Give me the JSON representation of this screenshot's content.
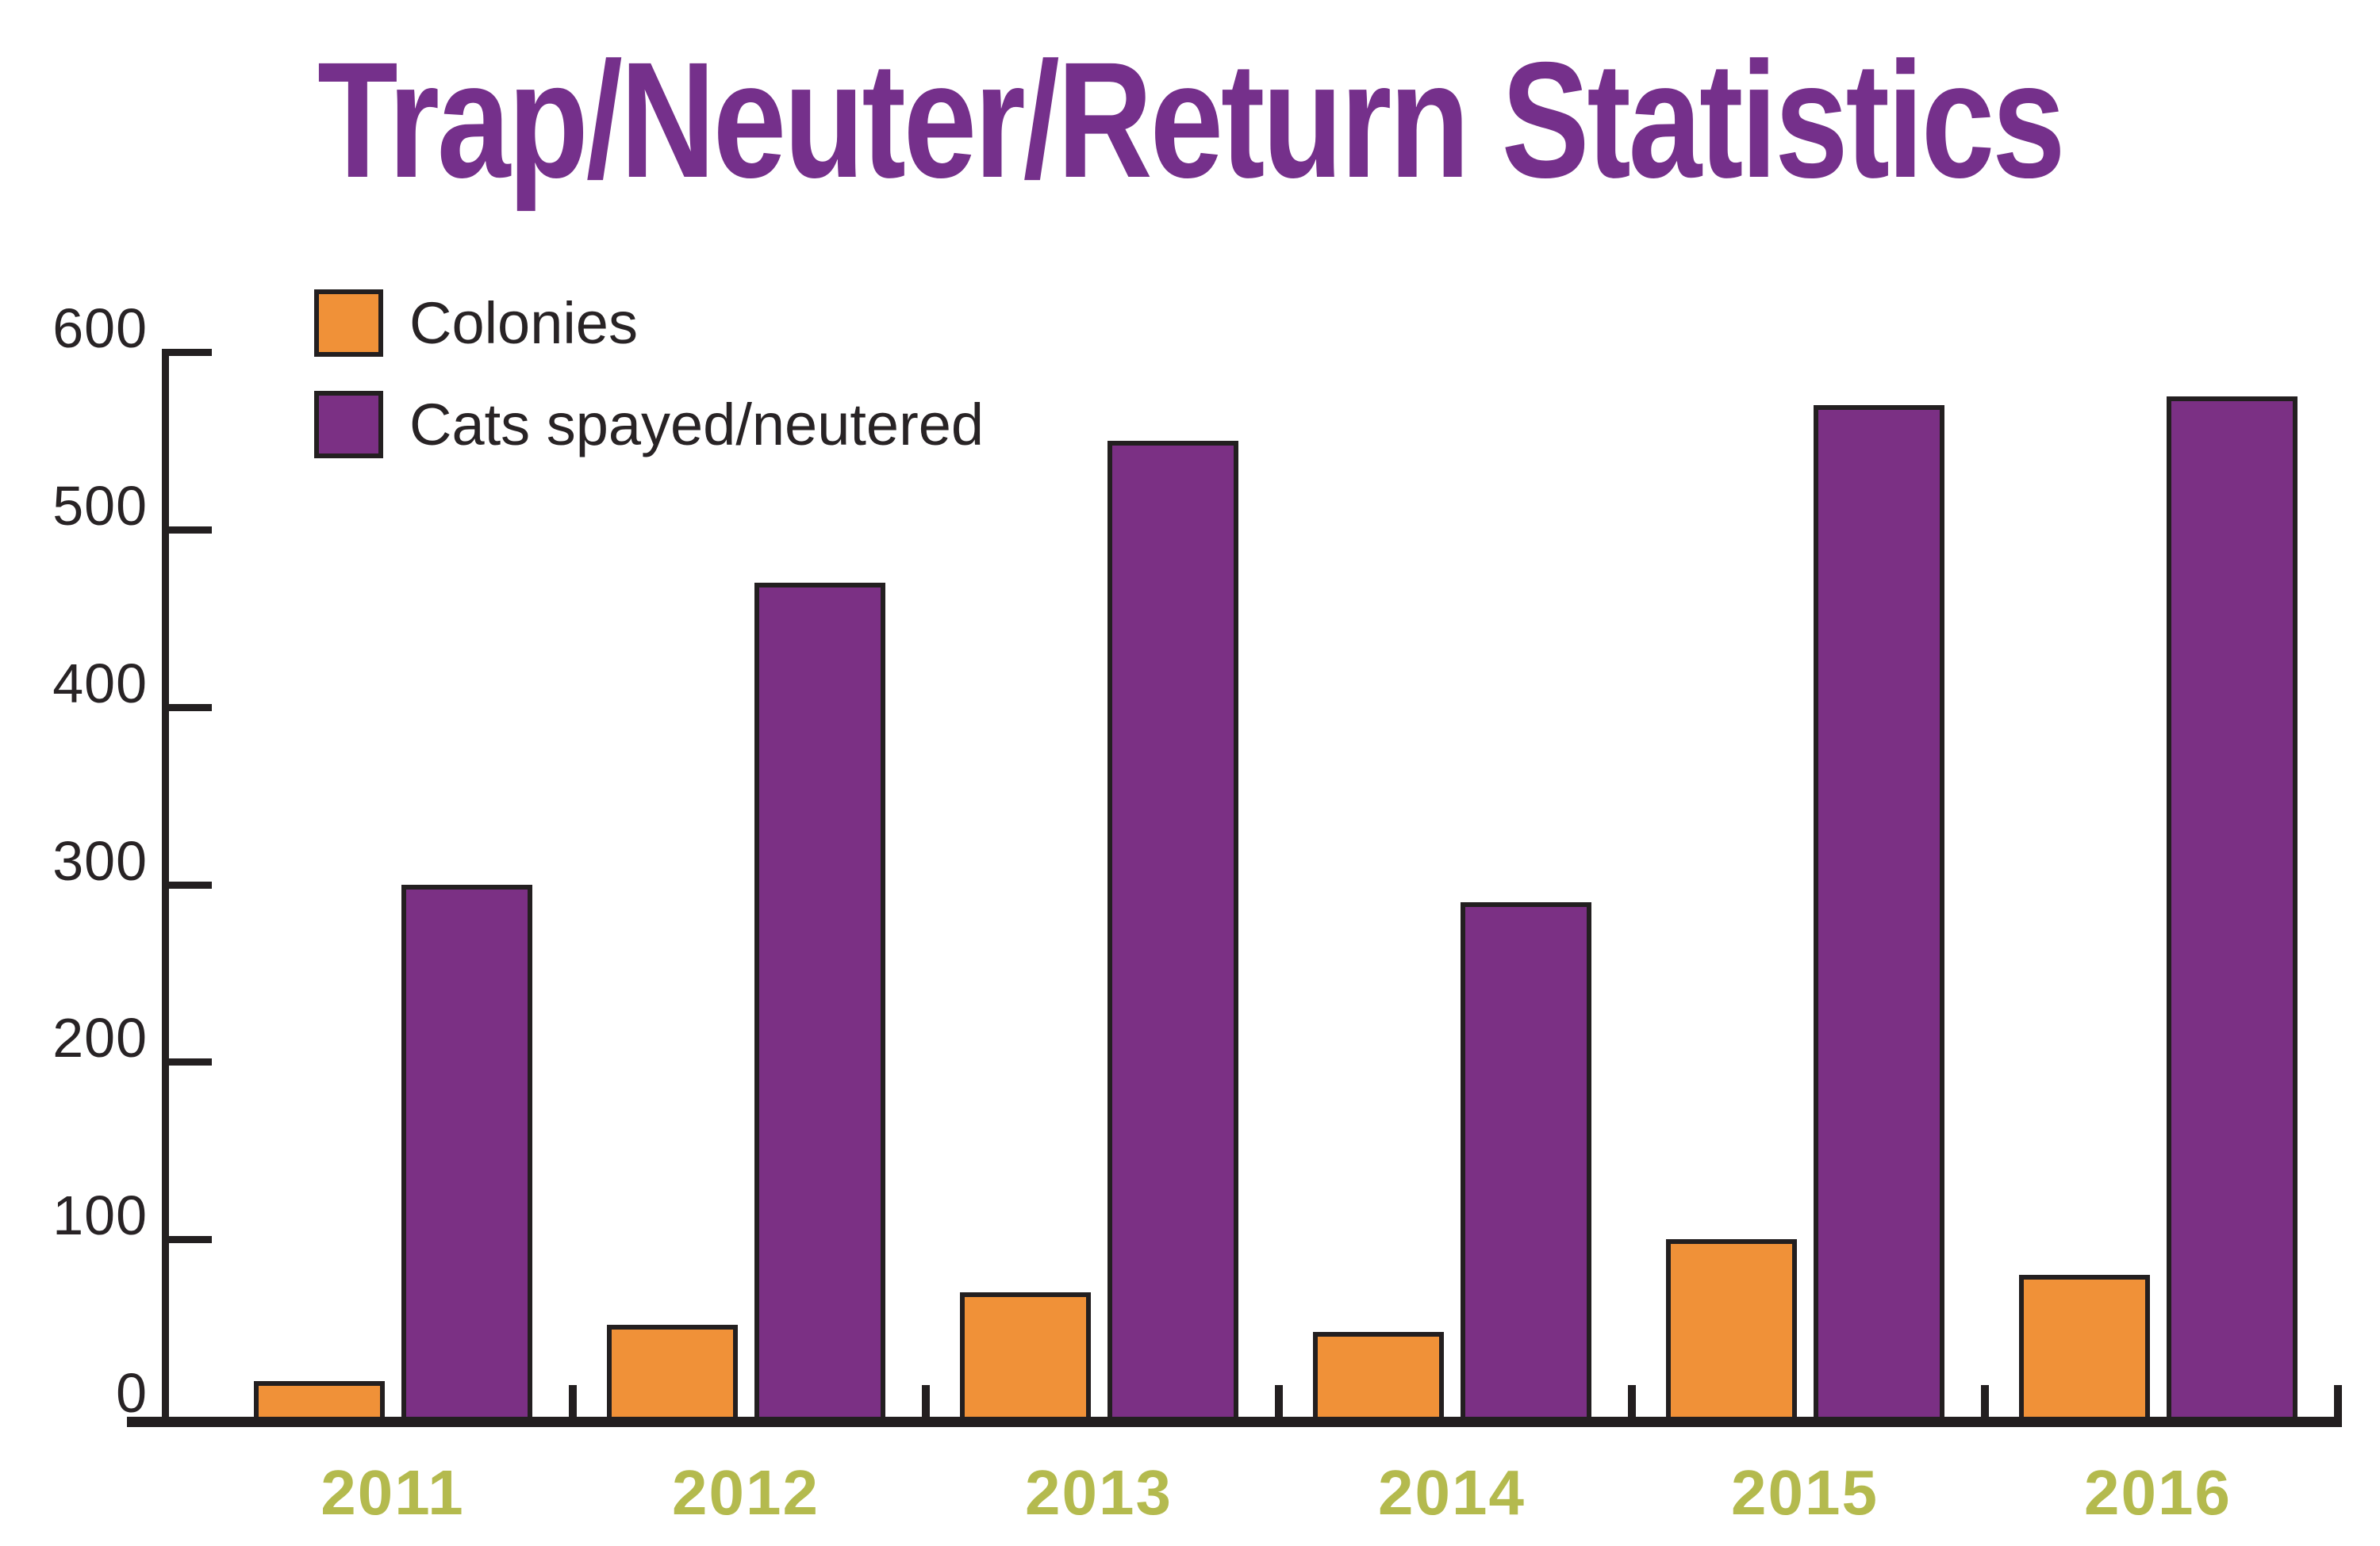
{
  "chart_data": {
    "type": "bar",
    "title": "Trap/Neuter/Return Statistics",
    "categories": [
      "2011",
      "2012",
      "2013",
      "2014",
      "2015",
      "2016"
    ],
    "series": [
      {
        "name": "Colonies",
        "color": "#F09138",
        "values": [
          20,
          52,
          70,
          48,
          100,
          80
        ]
      },
      {
        "name": "Cats spayed/neutered",
        "color": "#7B3084",
        "values": [
          300,
          470,
          550,
          290,
          570,
          575
        ]
      }
    ],
    "xlabel": "",
    "ylabel": "",
    "ylim": [
      0,
      600
    ],
    "yticks": [
      0,
      100,
      200,
      300,
      400,
      500,
      600
    ],
    "grid": false,
    "legend_position": "top-left",
    "bar_outline_color": "#231F20",
    "axis_color": "#231F20",
    "tick_label_color": "#282325",
    "category_label_color": "#B4BA4E",
    "title_color": "#75308B",
    "legend_text_color": "#282325",
    "background_color": "#FFFFFF"
  }
}
